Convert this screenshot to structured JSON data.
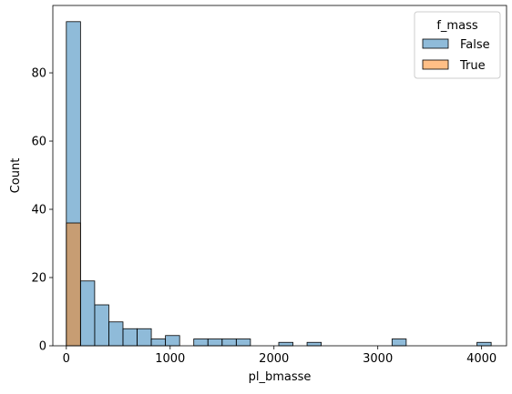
{
  "chart_data": {
    "type": "bar",
    "subtype": "histogram",
    "xlabel": "pl_bmasse",
    "ylabel": "Count",
    "xlim": [
      -130,
      4240
    ],
    "ylim": [
      0,
      99.75
    ],
    "x_ticks": [
      0,
      1000,
      2000,
      3000,
      4000
    ],
    "y_ticks": [
      0,
      20,
      40,
      60,
      80
    ],
    "bin_edges": [
      0,
      136.4,
      272.8,
      409.2,
      545.6,
      682,
      818.4,
      954.8,
      1091.2,
      1227.6,
      1364,
      1500.4,
      1636.8,
      1773.2,
      1909.6,
      2046,
      2182.4,
      2318.8,
      2455.2,
      2591.6,
      2728,
      2864.4,
      3000.8,
      3137.2,
      3273.6,
      3410,
      3546.4,
      3682.8,
      3819.2,
      3955.6,
      4092
    ],
    "series": [
      {
        "name": "False",
        "color": "#1f77b4",
        "values": [
          95,
          19,
          12,
          7,
          5,
          5,
          2,
          3,
          0,
          2,
          2,
          2,
          2,
          0,
          0,
          1,
          0,
          1,
          0,
          0,
          0,
          0,
          0,
          2,
          0,
          0,
          0,
          0,
          0,
          1
        ]
      },
      {
        "name": "True",
        "color": "#ff7f0e",
        "values": [
          36,
          0,
          0,
          0,
          0,
          0,
          0,
          0,
          0,
          0,
          0,
          0,
          0,
          0,
          0,
          0,
          0,
          0,
          0,
          0,
          0,
          0,
          0,
          0,
          0,
          0,
          0,
          0,
          0,
          0
        ]
      }
    ],
    "legend": {
      "title": "f_mass",
      "placement": "top-right"
    },
    "grid": false
  }
}
